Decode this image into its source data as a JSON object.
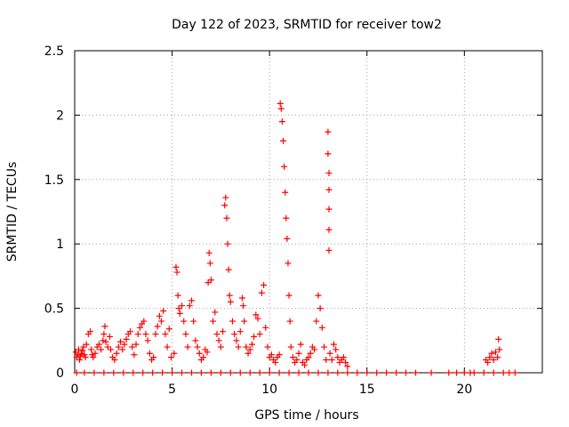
{
  "chart_data": {
    "type": "scatter",
    "title": "Day 122 of 2023, SRMTID for receiver tow2",
    "xlabel": "GPS time / hours",
    "ylabel": "SRMTID / TECUs",
    "xlim": [
      0,
      24
    ],
    "ylim": [
      0,
      2.5
    ],
    "x_ticks": [
      {
        "value": 0,
        "label": "0"
      },
      {
        "value": 5,
        "label": "5"
      },
      {
        "value": 10,
        "label": "10"
      },
      {
        "value": 15,
        "label": "15"
      },
      {
        "value": 20,
        "label": "20"
      }
    ],
    "y_ticks": [
      {
        "value": 0,
        "label": "0"
      },
      {
        "value": 0.5,
        "label": "0.5"
      },
      {
        "value": 1,
        "label": "1"
      },
      {
        "value": 1.5,
        "label": "1.5"
      },
      {
        "value": 2,
        "label": "2"
      },
      {
        "value": 2.5,
        "label": "2.5"
      }
    ],
    "grid": true,
    "marker": "+",
    "colors": {
      "points": "#ff0000",
      "grid": "#a0a0a0",
      "axes": "#000000"
    },
    "series": [
      {
        "name": "SRMTID",
        "x": [
          0.05,
          0.1,
          0.15,
          0.2,
          0.25,
          0.3,
          0.35,
          0.4,
          0.45,
          0.5,
          0.55,
          0.6,
          0.7,
          0.8,
          0.85,
          0.9,
          0.95,
          1.05,
          1.15,
          1.25,
          1.35,
          1.45,
          1.5,
          1.55,
          1.6,
          1.7,
          1.8,
          1.85,
          1.95,
          2.05,
          2.15,
          2.25,
          2.35,
          2.45,
          2.55,
          2.65,
          2.75,
          2.85,
          2.95,
          3.05,
          3.15,
          3.25,
          3.35,
          3.45,
          3.55,
          3.65,
          3.75,
          3.85,
          3.95,
          4.05,
          4.15,
          4.25,
          4.35,
          4.45,
          4.55,
          4.65,
          4.75,
          4.85,
          4.95,
          5.1,
          5.2,
          5.25,
          5.3,
          5.35,
          5.4,
          5.5,
          5.6,
          5.7,
          5.8,
          5.9,
          6.0,
          6.1,
          6.2,
          6.3,
          6.4,
          6.5,
          6.6,
          6.7,
          6.8,
          6.85,
          6.9,
          6.95,
          7.0,
          7.1,
          7.2,
          7.3,
          7.4,
          7.5,
          7.6,
          7.7,
          7.75,
          7.8,
          7.85,
          7.9,
          7.95,
          8.0,
          8.1,
          8.2,
          8.3,
          8.4,
          8.5,
          8.6,
          8.65,
          8.7,
          8.8,
          8.9,
          9.0,
          9.1,
          9.2,
          9.3,
          9.4,
          9.5,
          9.6,
          9.7,
          9.8,
          9.9,
          10.0,
          10.1,
          10.2,
          10.3,
          10.4,
          10.5,
          10.55,
          10.6,
          10.65,
          10.7,
          10.75,
          10.8,
          10.85,
          10.9,
          10.95,
          11.0,
          11.05,
          11.1,
          11.2,
          11.3,
          11.4,
          11.5,
          11.6,
          11.7,
          11.8,
          11.9,
          12.0,
          12.1,
          12.2,
          12.3,
          12.4,
          12.5,
          12.6,
          12.7,
          12.8,
          12.9,
          13.0,
          13.0,
          13.05,
          13.05,
          13.05,
          13.05,
          13.05,
          13.1,
          13.2,
          13.3,
          13.4,
          13.5,
          13.6,
          13.7,
          13.8,
          13.9,
          14.0,
          21.1,
          21.2,
          21.3,
          21.4,
          21.5,
          21.6,
          21.7,
          21.75,
          21.8
        ],
        "y": [
          0.16,
          0.12,
          0.14,
          0.18,
          0.1,
          0.13,
          0.15,
          0.17,
          0.2,
          0.14,
          0.12,
          0.22,
          0.3,
          0.32,
          0.18,
          0.14,
          0.12,
          0.15,
          0.2,
          0.22,
          0.18,
          0.25,
          0.3,
          0.36,
          0.24,
          0.2,
          0.28,
          0.18,
          0.12,
          0.1,
          0.15,
          0.2,
          0.24,
          0.18,
          0.22,
          0.26,
          0.3,
          0.32,
          0.2,
          0.14,
          0.22,
          0.3,
          0.35,
          0.38,
          0.4,
          0.3,
          0.25,
          0.15,
          0.1,
          0.12,
          0.3,
          0.36,
          0.44,
          0.4,
          0.48,
          0.3,
          0.2,
          0.34,
          0.12,
          0.15,
          0.82,
          0.78,
          0.6,
          0.5,
          0.46,
          0.52,
          0.4,
          0.3,
          0.2,
          0.52,
          0.56,
          0.4,
          0.25,
          0.2,
          0.15,
          0.1,
          0.12,
          0.18,
          0.16,
          0.7,
          0.93,
          0.85,
          0.72,
          0.4,
          0.47,
          0.3,
          0.25,
          0.2,
          0.32,
          1.3,
          1.36,
          1.2,
          1.0,
          0.8,
          0.6,
          0.55,
          0.4,
          0.3,
          0.25,
          0.2,
          0.32,
          0.58,
          0.52,
          0.4,
          0.2,
          0.15,
          0.18,
          0.22,
          0.28,
          0.45,
          0.42,
          0.3,
          0.62,
          0.68,
          0.35,
          0.2,
          0.12,
          0.14,
          0.1,
          0.08,
          0.12,
          0.14,
          2.09,
          2.05,
          1.95,
          1.8,
          1.6,
          1.4,
          1.2,
          1.04,
          0.85,
          0.6,
          0.4,
          0.2,
          0.12,
          0.08,
          0.1,
          0.15,
          0.22,
          0.08,
          0.06,
          0.1,
          0.12,
          0.15,
          0.2,
          0.18,
          0.4,
          0.6,
          0.5,
          0.35,
          0.2,
          0.1,
          1.87,
          1.7,
          1.55,
          1.42,
          1.27,
          1.11,
          0.95,
          0.15,
          0.1,
          0.22,
          0.18,
          0.12,
          0.08,
          0.1,
          0.12,
          0.08,
          0.05,
          0.1,
          0.08,
          0.12,
          0.15,
          0.1,
          0.16,
          0.12,
          0.26,
          0.18
        ],
        "baseline_x": [
          0.1,
          0.5,
          1.0,
          1.5,
          2.0,
          2.5,
          3.0,
          3.5,
          4.0,
          4.5,
          5.0,
          5.5,
          6.0,
          6.5,
          7.0,
          7.5,
          8.0,
          8.5,
          9.0,
          9.5,
          10.0,
          10.5,
          11.0,
          11.5,
          12.0,
          12.5,
          13.0,
          13.5,
          14.0,
          14.5,
          15.0,
          15.5,
          16.0,
          16.5,
          17.0,
          17.5,
          18.3,
          19.2,
          19.6,
          20.0,
          20.3,
          20.5,
          21.0,
          21.5,
          22.0,
          22.3,
          22.6
        ],
        "baseline_y": 0
      }
    ]
  }
}
